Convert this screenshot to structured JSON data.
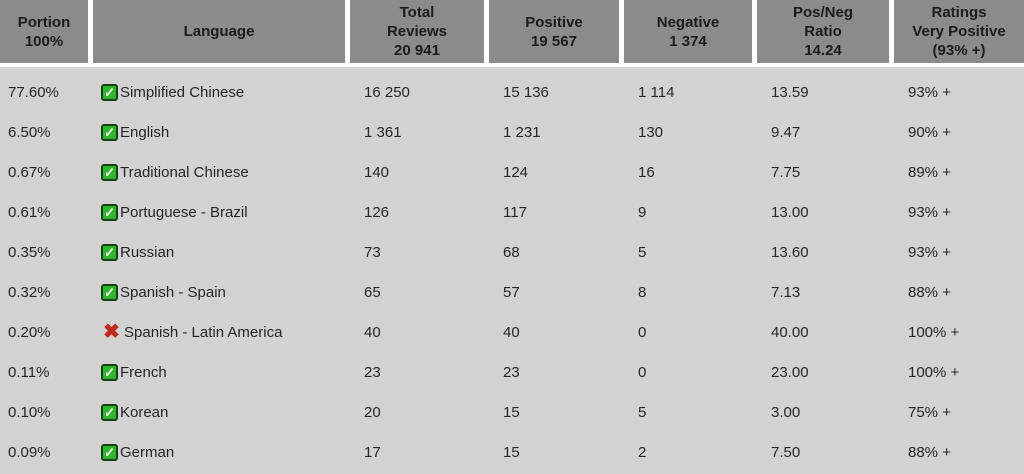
{
  "colors": {
    "header_bg": "#8b8b8b",
    "body_bg": "#d2d2d2",
    "checkbox_green": "#2fb52f",
    "checkbox_border": "#143f14",
    "cross_red": "#bf2a1d",
    "text": "#262626"
  },
  "icons": {
    "check_glyph": "✓",
    "cross_glyph": "✖"
  },
  "table": {
    "columns": [
      {
        "id": "portion",
        "label": "Portion\n100%"
      },
      {
        "id": "language",
        "label": "Language"
      },
      {
        "id": "total",
        "label": "Total\nReviews\n20 941"
      },
      {
        "id": "positive",
        "label": "Positive\n19 567"
      },
      {
        "id": "negative",
        "label": "Negative\n1 374"
      },
      {
        "id": "ratio",
        "label": "Pos/Neg\nRatio\n14.24"
      },
      {
        "id": "ratings",
        "label": "Ratings\nVery Positive\n(93% +)"
      }
    ],
    "rows": [
      {
        "portion": "77.60%",
        "status": "checked",
        "language": "Simplified Chinese",
        "total": "16 250",
        "positive": "15 136",
        "negative": "1 114",
        "ratio": "13.59",
        "rating": "93% +"
      },
      {
        "portion": "6.50%",
        "status": "checked",
        "language": "English",
        "total": "1 361",
        "positive": "1 231",
        "negative": "130",
        "ratio": "9.47",
        "rating": "90% +"
      },
      {
        "portion": "0.67%",
        "status": "checked",
        "language": "Traditional Chinese",
        "total": "140",
        "positive": "124",
        "negative": "16",
        "ratio": "7.75",
        "rating": "89% +"
      },
      {
        "portion": "0.61%",
        "status": "checked",
        "language": "Portuguese - Brazil",
        "total": "126",
        "positive": "117",
        "negative": "9",
        "ratio": "13.00",
        "rating": "93% +"
      },
      {
        "portion": "0.35%",
        "status": "checked",
        "language": "Russian",
        "total": "73",
        "positive": "68",
        "negative": "5",
        "ratio": "13.60",
        "rating": "93% +"
      },
      {
        "portion": "0.32%",
        "status": "checked",
        "language": "Spanish - Spain",
        "total": "65",
        "positive": "57",
        "negative": "8",
        "ratio": "7.13",
        "rating": "88% +"
      },
      {
        "portion": "0.20%",
        "status": "crossed",
        "language": "Spanish - Latin America",
        "total": "40",
        "positive": "40",
        "negative": "0",
        "ratio": "40.00",
        "rating": "100% +"
      },
      {
        "portion": "0.11%",
        "status": "checked",
        "language": "French",
        "total": "23",
        "positive": "23",
        "negative": "0",
        "ratio": "23.00",
        "rating": "100% +"
      },
      {
        "portion": "0.10%",
        "status": "checked",
        "language": "Korean",
        "total": "20",
        "positive": "15",
        "negative": "5",
        "ratio": "3.00",
        "rating": "75% +"
      },
      {
        "portion": "0.09%",
        "status": "checked",
        "language": "German",
        "total": "17",
        "positive": "15",
        "negative": "2",
        "ratio": "7.50",
        "rating": "88% +"
      }
    ]
  }
}
